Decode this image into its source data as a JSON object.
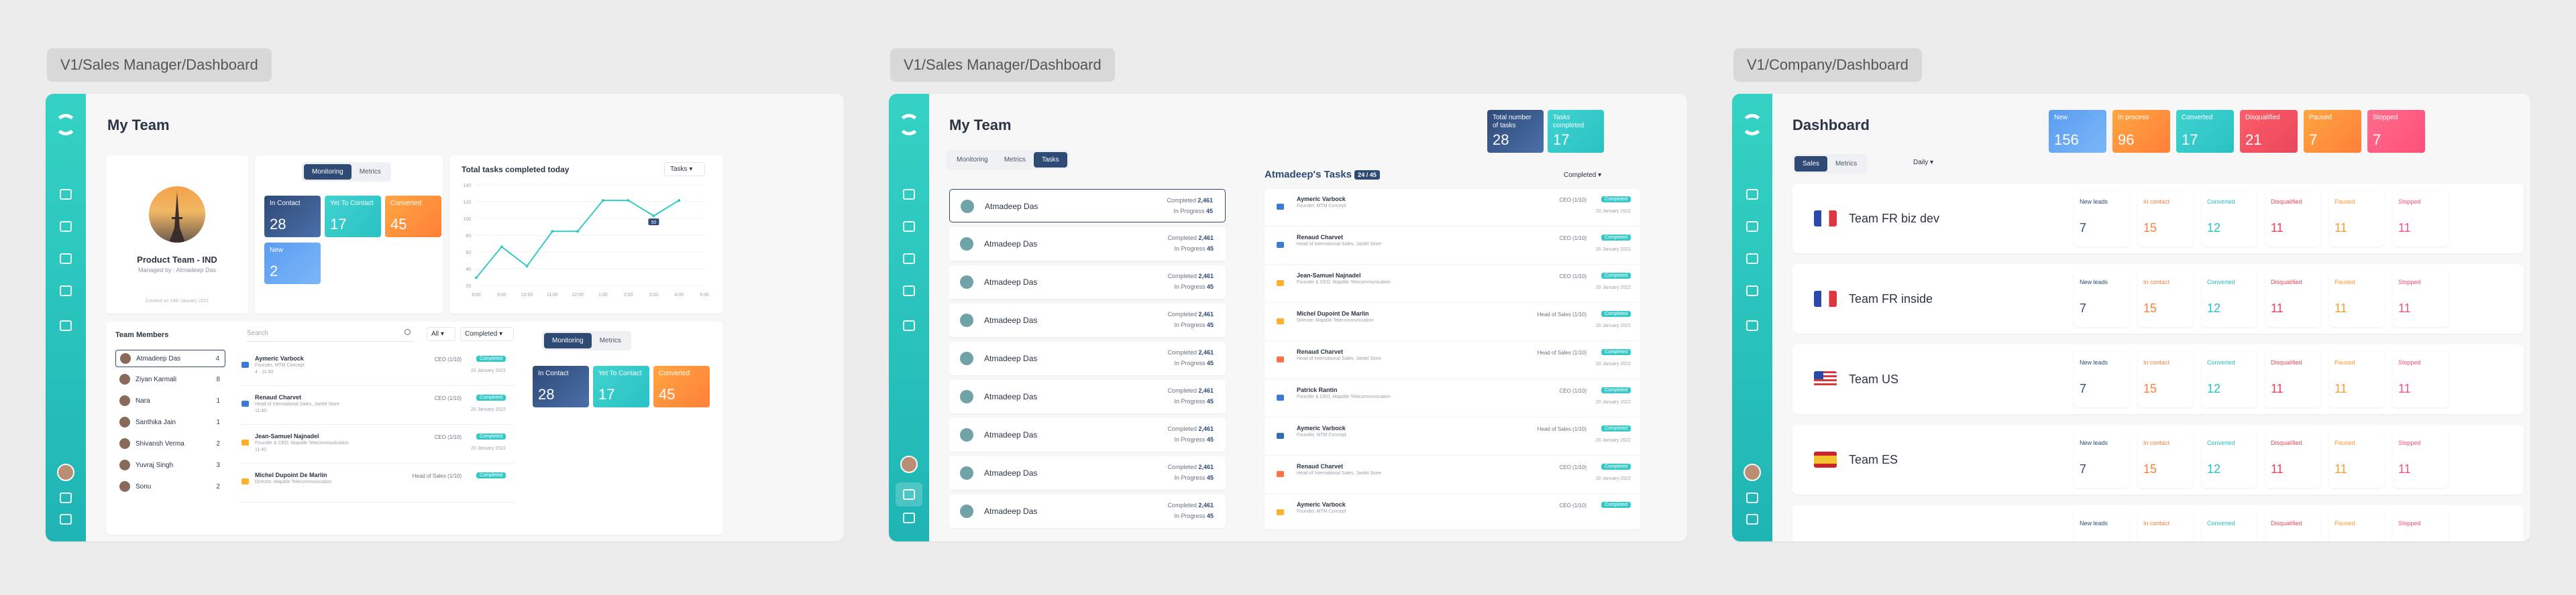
{
  "frames": [
    {
      "label": "V1/Sales Manager/Dashboard"
    },
    {
      "label": "V1/Sales Manager/Dashboard"
    },
    {
      "label": "V1/Company/Dashboard"
    }
  ],
  "f1": {
    "title": "My Team",
    "team_name": "Product Team - IND",
    "managed_by": "Managed by : Atmadeep Das",
    "created": "Created on 18th January 2021",
    "tabs": [
      "Monitoring",
      "Metrics"
    ],
    "tiles": [
      {
        "label": "In Contact",
        "value": "28"
      },
      {
        "label": "Yet To Contact",
        "value": "17"
      },
      {
        "label": "Converted",
        "value": "45"
      },
      {
        "label": "New",
        "value": "2"
      }
    ],
    "chart": {
      "title": "Total tasks completed today",
      "filter": "Tasks",
      "yticks": [
        "140",
        "120",
        "100",
        "80",
        "60",
        "40",
        "20"
      ],
      "xticks": [
        "8:00",
        "9:00",
        "10:00",
        "11:00",
        "12:00",
        "1:00",
        "2:00",
        "3:00",
        "4:00",
        "5:00"
      ],
      "tooltip": "50"
    },
    "members_title": "Team Members",
    "members": [
      {
        "name": "Atmadeep Das",
        "count": "4"
      },
      {
        "name": "Ziyan Karmali",
        "count": "8"
      },
      {
        "name": "Nara",
        "count": "1"
      },
      {
        "name": "Santhika Jain",
        "count": "1"
      },
      {
        "name": "Shivansh Verma",
        "count": "2"
      },
      {
        "name": "Yuvraj Singh",
        "count": "3"
      },
      {
        "name": "Sonu",
        "count": "2"
      }
    ],
    "search_placeholder": "Search",
    "filter_all": "All",
    "filter_completed": "Completed",
    "tasks": [
      {
        "name": "Aymeric Varbock",
        "sub": "Founder, MTM Concept",
        "meta": "4 · 11:40",
        "stage": "CEO (1/10)",
        "badge": "Completed",
        "date": "20 January 2022",
        "icon": "phone"
      },
      {
        "name": "Renaud Charvet",
        "sub": "Head of International Sales, Jardel Store",
        "meta": "11:40",
        "stage": "CEO (1/10)",
        "badge": "Completed",
        "date": "20 January 2022",
        "icon": "phone"
      },
      {
        "name": "Jean-Samuel Najnadel",
        "sub": "Founder & CEO, Mapdile Telecommunication",
        "meta": "11:40",
        "stage": "CEO (1/10)",
        "badge": "Completed",
        "date": "20 January 2022",
        "icon": "mail"
      },
      {
        "name": "Michel Dupoint De Marlin",
        "sub": "Director, Mapdile Telecommunication",
        "meta": "",
        "stage": "Head of Sales (1/10)",
        "badge": "Completed",
        "date": "",
        "icon": "mail"
      }
    ],
    "tabs2": [
      "Monitoring",
      "Metrics"
    ],
    "tiles2": [
      {
        "label": "In Contact",
        "value": "28"
      },
      {
        "label": "Yet To Contact",
        "value": "17"
      },
      {
        "label": "Converted",
        "value": "45"
      }
    ]
  },
  "f2": {
    "title": "My Team",
    "tabs": [
      "Monitoring",
      "Metrics",
      "Tasks"
    ],
    "tiles": [
      {
        "label": "Total number of tasks",
        "value": "28"
      },
      {
        "label": "Tasks completed",
        "value": "17"
      }
    ],
    "member_rows": [
      {
        "name": "Atmadeep Das",
        "completed": "Completed",
        "c_val": "2,461",
        "progress": "In Progress",
        "p_val": "45"
      },
      {
        "name": "Atmadeep Das",
        "completed": "Completed",
        "c_val": "2,461",
        "progress": "In Progress",
        "p_val": "45"
      },
      {
        "name": "Atmadeep Das",
        "completed": "Completed",
        "c_val": "2,461",
        "progress": "In Progress",
        "p_val": "45"
      },
      {
        "name": "Atmadeep Das",
        "completed": "Completed",
        "c_val": "2,461",
        "progress": "In Progress",
        "p_val": "45"
      },
      {
        "name": "Atmadeep Das",
        "completed": "Completed",
        "c_val": "2,461",
        "progress": "In Progress",
        "p_val": "45"
      },
      {
        "name": "Atmadeep Das",
        "completed": "Completed",
        "c_val": "2,461",
        "progress": "In Progress",
        "p_val": "45"
      },
      {
        "name": "Atmadeep Das",
        "completed": "Completed",
        "c_val": "2,461",
        "progress": "In Progress",
        "p_val": "45"
      },
      {
        "name": "Atmadeep Das",
        "completed": "Completed",
        "c_val": "2,461",
        "progress": "In Progress",
        "p_val": "45"
      },
      {
        "name": "Atmadeep Das",
        "completed": "Completed",
        "c_val": "2,461",
        "progress": "In Progress",
        "p_val": "45"
      }
    ],
    "tasks_title": "Atmadeep's Tasks",
    "tasks_count": "24 / 45",
    "filter": "Completed",
    "tasks": [
      {
        "name": "Aymeric Varbock",
        "sub": "Founder, MTM Concept",
        "stage": "CEO (1/10)",
        "badge": "Completed",
        "date": "20 January 2022",
        "icon": "phone"
      },
      {
        "name": "Renaud Charvet",
        "sub": "Head of International Sales, Jardel Store",
        "stage": "CEO (1/10)",
        "badge": "Completed",
        "date": "20 January 2022",
        "icon": "phone"
      },
      {
        "name": "Jean-Samuel Najnadel",
        "sub": "Founder & CEO, Mapdile Telecommunication",
        "stage": "CEO (1/10)",
        "badge": "Completed",
        "date": "20 January 2022",
        "icon": "mail"
      },
      {
        "name": "Michel Dupoint De Marlin",
        "sub": "Director, Mapdile Telecommunication",
        "stage": "Head of Sales (1/10)",
        "badge": "Completed",
        "date": "20 January 2022",
        "icon": "mail"
      },
      {
        "name": "Renaud Charvet",
        "sub": "Head of International Sales, Jardel Store",
        "stage": "Head of Sales (1/10)",
        "badge": "Completed",
        "date": "20 January 2022",
        "icon": "chat"
      },
      {
        "name": "Patrick Rantin",
        "sub": "Founder & CEO, Mapdile Telecommunication",
        "stage": "CEO (1/10)",
        "badge": "Completed",
        "date": "20 January 2022",
        "icon": "phone"
      },
      {
        "name": "Aymeric Varbock",
        "sub": "Founder, MTM Concept",
        "stage": "Head of Sales (1/10)",
        "badge": "Completed",
        "date": "20 January 2022",
        "icon": "linkedin"
      },
      {
        "name": "Renaud Charvet",
        "sub": "Head of International Sales, Jardel Store",
        "stage": "CEO (1/10)",
        "badge": "Completed",
        "date": "20 January 2022",
        "icon": "chat"
      },
      {
        "name": "Aymeric Varbock",
        "sub": "Founder, MTM Concept",
        "stage": "CEO (1/10)",
        "badge": "Completed",
        "date": "",
        "icon": "mail"
      }
    ]
  },
  "f3": {
    "title": "Dashboard",
    "tabs": [
      "Sales",
      "Metrics"
    ],
    "period": "Daily",
    "tiles": [
      {
        "label": "New",
        "value": "156"
      },
      {
        "label": "In process",
        "value": "96"
      },
      {
        "label": "Converted",
        "value": "17"
      },
      {
        "label": "Disqualified",
        "value": "21"
      },
      {
        "label": "Paused",
        "value": "7"
      },
      {
        "label": "Stopped",
        "value": "7"
      }
    ],
    "cols": [
      "New leads",
      "In contact",
      "Converted",
      "Disqualified",
      "Paused",
      "Stopped"
    ],
    "col_colors": [
      "#2e4a75",
      "#ff7f3a",
      "#2bc0c4",
      "#e8475b",
      "#ff9a2e",
      "#ff4f78"
    ],
    "teams": [
      {
        "name": "Team FR biz dev",
        "flag": "fr",
        "vals": [
          "7",
          "15",
          "12",
          "11",
          "11",
          "11"
        ]
      },
      {
        "name": "Team FR inside",
        "flag": "fr",
        "vals": [
          "7",
          "15",
          "12",
          "11",
          "11",
          "11"
        ]
      },
      {
        "name": "Team US",
        "flag": "us",
        "vals": [
          "7",
          "15",
          "12",
          "11",
          "11",
          "11"
        ]
      },
      {
        "name": "Team ES",
        "flag": "es",
        "vals": [
          "7",
          "15",
          "12",
          "11",
          "11",
          "11"
        ]
      },
      {
        "name": "",
        "flag": "",
        "vals": [
          "",
          "",
          "",
          "",
          "",
          ""
        ]
      }
    ]
  }
}
